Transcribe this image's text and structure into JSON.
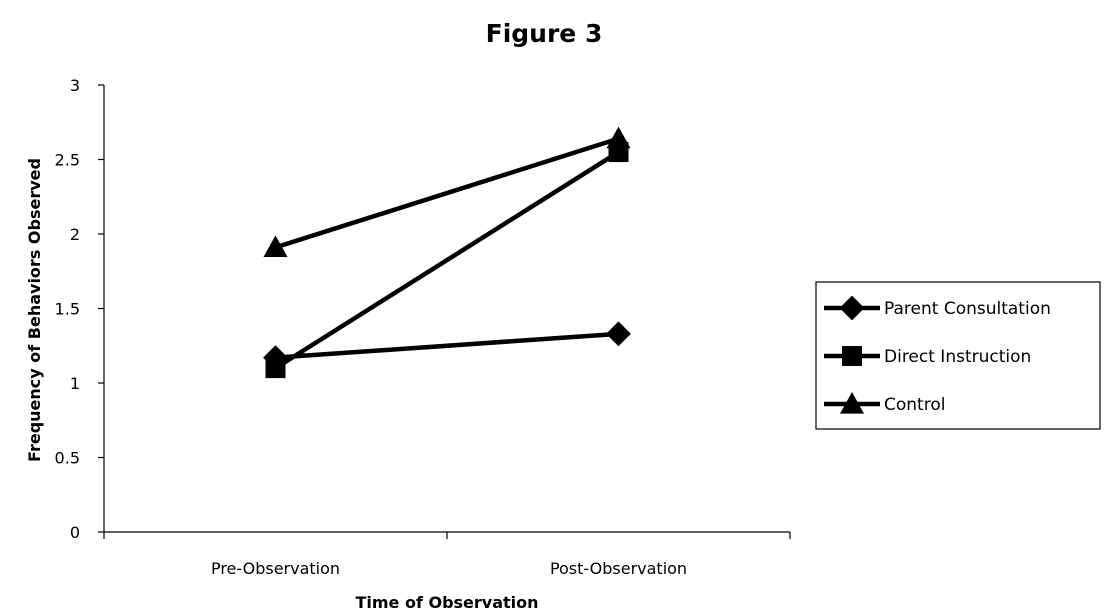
{
  "chart_data": {
    "type": "line",
    "title": "Figure 3",
    "xlabel": "Time of Observation",
    "ylabel": "Frequency of Behaviors Observed",
    "categories": [
      "Pre-Observation",
      "Post-Observation"
    ],
    "ylim": [
      0,
      3
    ],
    "y_ticks": [
      "0",
      "0.5",
      "1",
      "1.5",
      "2",
      "2.5",
      "3"
    ],
    "grid": false,
    "legend_position": "right",
    "series": [
      {
        "name": "Parent Consultation",
        "marker": "diamond",
        "color": "#000000",
        "values": [
          1.17,
          1.33
        ]
      },
      {
        "name": "Direct Instruction",
        "marker": "square",
        "color": "#000000",
        "values": [
          1.1,
          2.55
        ]
      },
      {
        "name": "Control",
        "marker": "triangle",
        "color": "#000000",
        "values": [
          1.91,
          2.64
        ]
      }
    ]
  }
}
